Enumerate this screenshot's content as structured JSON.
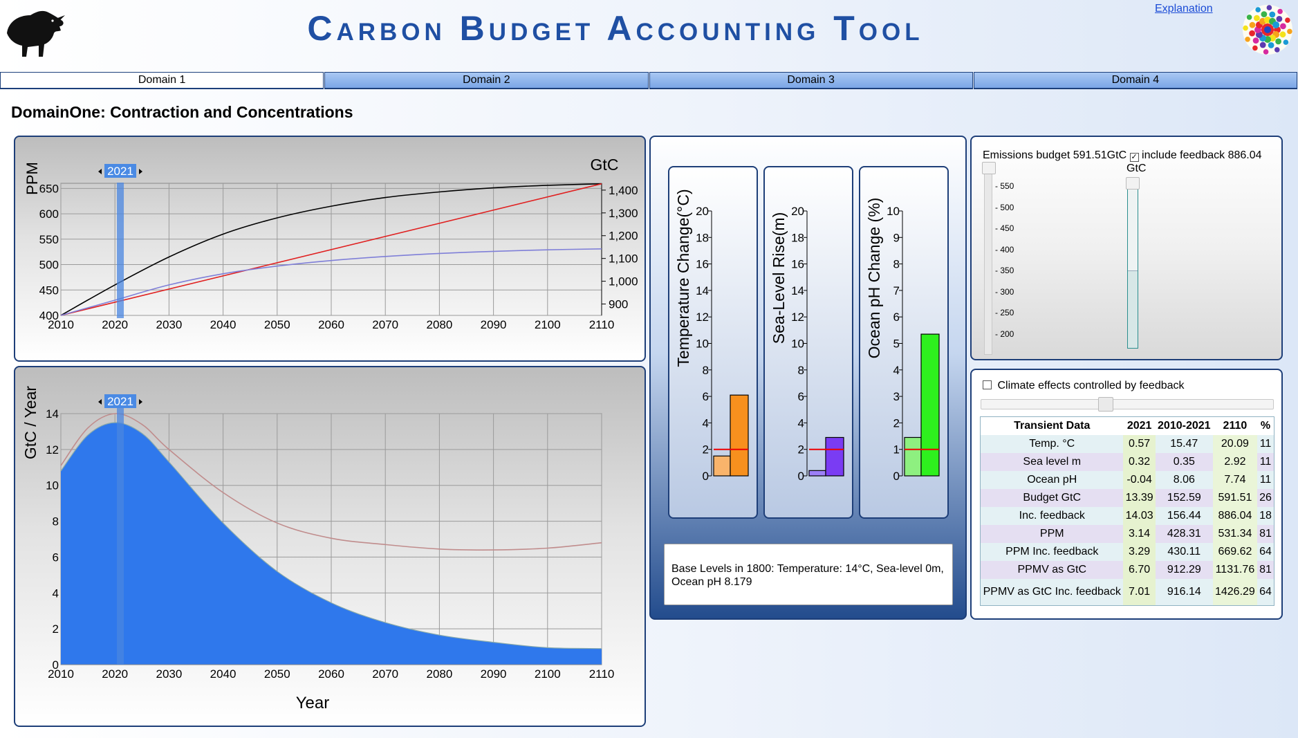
{
  "header": {
    "title": "Carbon Budget Accounting Tool",
    "explanation_link": "Explanation"
  },
  "tabs": [
    {
      "label": "Domain 1",
      "active": true
    },
    {
      "label": "Domain 2",
      "active": false
    },
    {
      "label": "Domain 3",
      "active": false
    },
    {
      "label": "Domain 4",
      "active": false
    }
  ],
  "page_title": "DomainOne: Contraction and Concentrations",
  "colors": {
    "accent": "#1f4fa3",
    "area_blue": "#2f78ec",
    "red_line": "#e02020"
  },
  "year_marker": "2021",
  "chart_data": [
    {
      "type": "line",
      "name": "concentrations",
      "ylabel": "PPM",
      "y2label": "GtC",
      "x_ticks": [
        2010,
        2020,
        2030,
        2040,
        2050,
        2060,
        2070,
        2080,
        2090,
        2100,
        2110
      ],
      "y_ticks": [
        400,
        450,
        500,
        550,
        600,
        650
      ],
      "y2_ticks": [
        "900",
        "1,000",
        "1,100",
        "1,200",
        "1,300",
        "1,400"
      ],
      "xlim": [
        2010,
        2110
      ],
      "ylim": [
        400,
        660
      ],
      "y2lim": [
        850,
        1430
      ],
      "series": [
        {
          "color": "#000000",
          "x": [
            2010,
            2020,
            2030,
            2040,
            2050,
            2060,
            2070,
            2080,
            2090,
            2100,
            2110
          ],
          "y": [
            400,
            460,
            515,
            560,
            592,
            615,
            632,
            643,
            651,
            656,
            659
          ]
        },
        {
          "color": "#e02020",
          "x": [
            2010,
            2110
          ],
          "y": [
            400,
            659
          ]
        },
        {
          "color": "#7f7fd8",
          "x": [
            2010,
            2020,
            2030,
            2040,
            2050,
            2060,
            2070,
            2080,
            2090,
            2100,
            2110
          ],
          "y": [
            400,
            430,
            460,
            482,
            497,
            508,
            516,
            522,
            526,
            529,
            531
          ]
        }
      ]
    },
    {
      "type": "area",
      "name": "emissions",
      "xlabel": "Year",
      "ylabel": "GtC / Year",
      "x_ticks": [
        2010,
        2020,
        2030,
        2040,
        2050,
        2060,
        2070,
        2080,
        2090,
        2100,
        2110
      ],
      "y_ticks": [
        0,
        2,
        4,
        6,
        8,
        10,
        12,
        14
      ],
      "xlim": [
        2010,
        2110
      ],
      "ylim": [
        0,
        14
      ],
      "series": [
        {
          "color": "#2f78ec",
          "x": [
            2010,
            2015,
            2020,
            2025,
            2030,
            2040,
            2050,
            2060,
            2070,
            2080,
            2090,
            2100,
            2110
          ],
          "y": [
            10.8,
            12.8,
            13.5,
            12.9,
            11.3,
            7.9,
            5.2,
            3.45,
            2.35,
            1.65,
            1.25,
            0.95,
            0.9
          ]
        },
        {
          "color": "#c08c8c",
          "x": [
            2010,
            2015,
            2020,
            2025,
            2030,
            2040,
            2050,
            2060,
            2070,
            2080,
            2090,
            2100,
            2110
          ],
          "y": [
            11.1,
            13.2,
            14.0,
            13.4,
            12.0,
            9.6,
            7.9,
            7.05,
            6.7,
            6.45,
            6.4,
            6.5,
            6.8
          ]
        }
      ]
    }
  ],
  "bars": [
    {
      "label": "Temperature Change(°C)",
      "ticks": [
        "0",
        "2",
        "4",
        "6",
        "8",
        "10",
        "12",
        "14",
        "16",
        "18",
        "20"
      ],
      "max": 20,
      "values": [
        1.5,
        6.1
      ],
      "light": "#f9b46b",
      "dark": "#f7901e",
      "redline": 2
    },
    {
      "label": "Sea-Level Rise(m)",
      "ticks": [
        "0",
        "2",
        "4",
        "6",
        "8",
        "10",
        "12",
        "14",
        "16",
        "18",
        "20"
      ],
      "max": 20,
      "values": [
        0.4,
        2.9
      ],
      "light": "#9d80f7",
      "dark": "#7a3cf3",
      "redline": 2
    },
    {
      "label": "Ocean pH Change (%)",
      "ticks": [
        "0",
        "1",
        "2",
        "3",
        "4",
        "5",
        "6",
        "7",
        "8",
        "9",
        "10"
      ],
      "max": 10,
      "values": [
        1.45,
        5.35
      ],
      "light": "#8ef080",
      "dark": "#2ef01e",
      "redline": 1
    }
  ],
  "base_levels": "Base Levels in 1800: Temperature: 14°C, Sea-level 0m, Ocean pH 8.179",
  "budget": {
    "label": "Emissions budget 591.51GtC",
    "feedback_label": "include feedback 886.04",
    "unit": "GtC",
    "checked": true,
    "ticks": [
      "550",
      "500",
      "450",
      "400",
      "350",
      "300",
      "250",
      "200"
    ],
    "left_value": 591.51,
    "right_fill_fraction": 0.48
  },
  "feedback": {
    "label": "Climate effects controlled by feedback",
    "checked": false,
    "slider_fraction": 0.4
  },
  "table": {
    "headers": [
      "Transient Data",
      "2021",
      "2010-2021",
      "2110",
      "%"
    ],
    "rows": [
      [
        "Temp. °C",
        "0.57",
        "15.47",
        "20.09",
        "11"
      ],
      [
        "Sea level m",
        "0.32",
        "0.35",
        "2.92",
        "11"
      ],
      [
        "Ocean pH",
        "-0.04",
        "8.06",
        "7.74",
        "11"
      ],
      [
        "Budget GtC",
        "13.39",
        "152.59",
        "591.51",
        "26"
      ],
      [
        "Inc. feedback",
        "14.03",
        "156.44",
        "886.04",
        "18"
      ],
      [
        "PPM",
        "3.14",
        "428.31",
        "531.34",
        "81"
      ],
      [
        "PPM Inc. feedback",
        "3.29",
        "430.11",
        "669.62",
        "64"
      ],
      [
        "PPMV as GtC",
        "6.70",
        "912.29",
        "1131.76",
        "81"
      ],
      [
        "PPMV as GtC Inc. feedback",
        "7.01",
        "916.14",
        "1426.29",
        "64"
      ]
    ]
  }
}
